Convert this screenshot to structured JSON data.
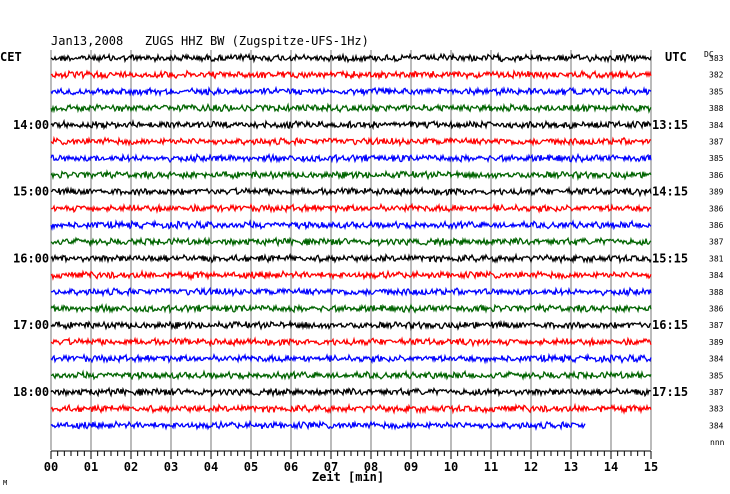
{
  "chart_data": {
    "type": "line",
    "title": "Jan13,2008   ZUGS HHZ BW (Zugspitze-UFS-1Hz)",
    "xlabel": "Zeit [min]",
    "left_label": "CET",
    "right_label": "UTC",
    "dc_label": "DC",
    "xlim": [
      0,
      15
    ],
    "x_ticks": [
      "00",
      "01",
      "02",
      "03",
      "04",
      "05",
      "06",
      "07",
      "08",
      "09",
      "10",
      "11",
      "12",
      "13",
      "14",
      "15"
    ],
    "left_time_labels": [
      {
        "row": 4,
        "text": "14:00"
      },
      {
        "row": 8,
        "text": "15:00"
      },
      {
        "row": 12,
        "text": "16:00"
      },
      {
        "row": 16,
        "text": "17:00"
      },
      {
        "row": 20,
        "text": "18:00"
      }
    ],
    "right_time_labels": [
      {
        "row": 4,
        "text": "13:15"
      },
      {
        "row": 8,
        "text": "14:15"
      },
      {
        "row": 12,
        "text": "15:15"
      },
      {
        "row": 16,
        "text": "16:15"
      },
      {
        "row": 20,
        "text": "17:15"
      }
    ],
    "row_colors": [
      "#000000",
      "#ff0000",
      "#0000ff",
      "#006400"
    ],
    "traces": [
      {
        "dc": "383",
        "end_min": 15
      },
      {
        "dc": "382",
        "end_min": 15
      },
      {
        "dc": "385",
        "end_min": 15
      },
      {
        "dc": "388",
        "end_min": 15
      },
      {
        "dc": "384",
        "end_min": 15
      },
      {
        "dc": "387",
        "end_min": 15
      },
      {
        "dc": "385",
        "end_min": 15
      },
      {
        "dc": "386",
        "end_min": 15
      },
      {
        "dc": "389",
        "end_min": 15
      },
      {
        "dc": "386",
        "end_min": 15
      },
      {
        "dc": "386",
        "end_min": 15
      },
      {
        "dc": "387",
        "end_min": 15
      },
      {
        "dc": "381",
        "end_min": 15
      },
      {
        "dc": "384",
        "end_min": 15
      },
      {
        "dc": "388",
        "end_min": 15
      },
      {
        "dc": "386",
        "end_min": 15
      },
      {
        "dc": "387",
        "end_min": 15
      },
      {
        "dc": "389",
        "end_min": 15
      },
      {
        "dc": "384",
        "end_min": 15
      },
      {
        "dc": "385",
        "end_min": 15
      },
      {
        "dc": "387",
        "end_min": 15
      },
      {
        "dc": "383",
        "end_min": 15
      },
      {
        "dc": "384",
        "end_min": 13.35
      }
    ],
    "footer_right": "nnn",
    "footer_left": "M",
    "grid": true
  }
}
